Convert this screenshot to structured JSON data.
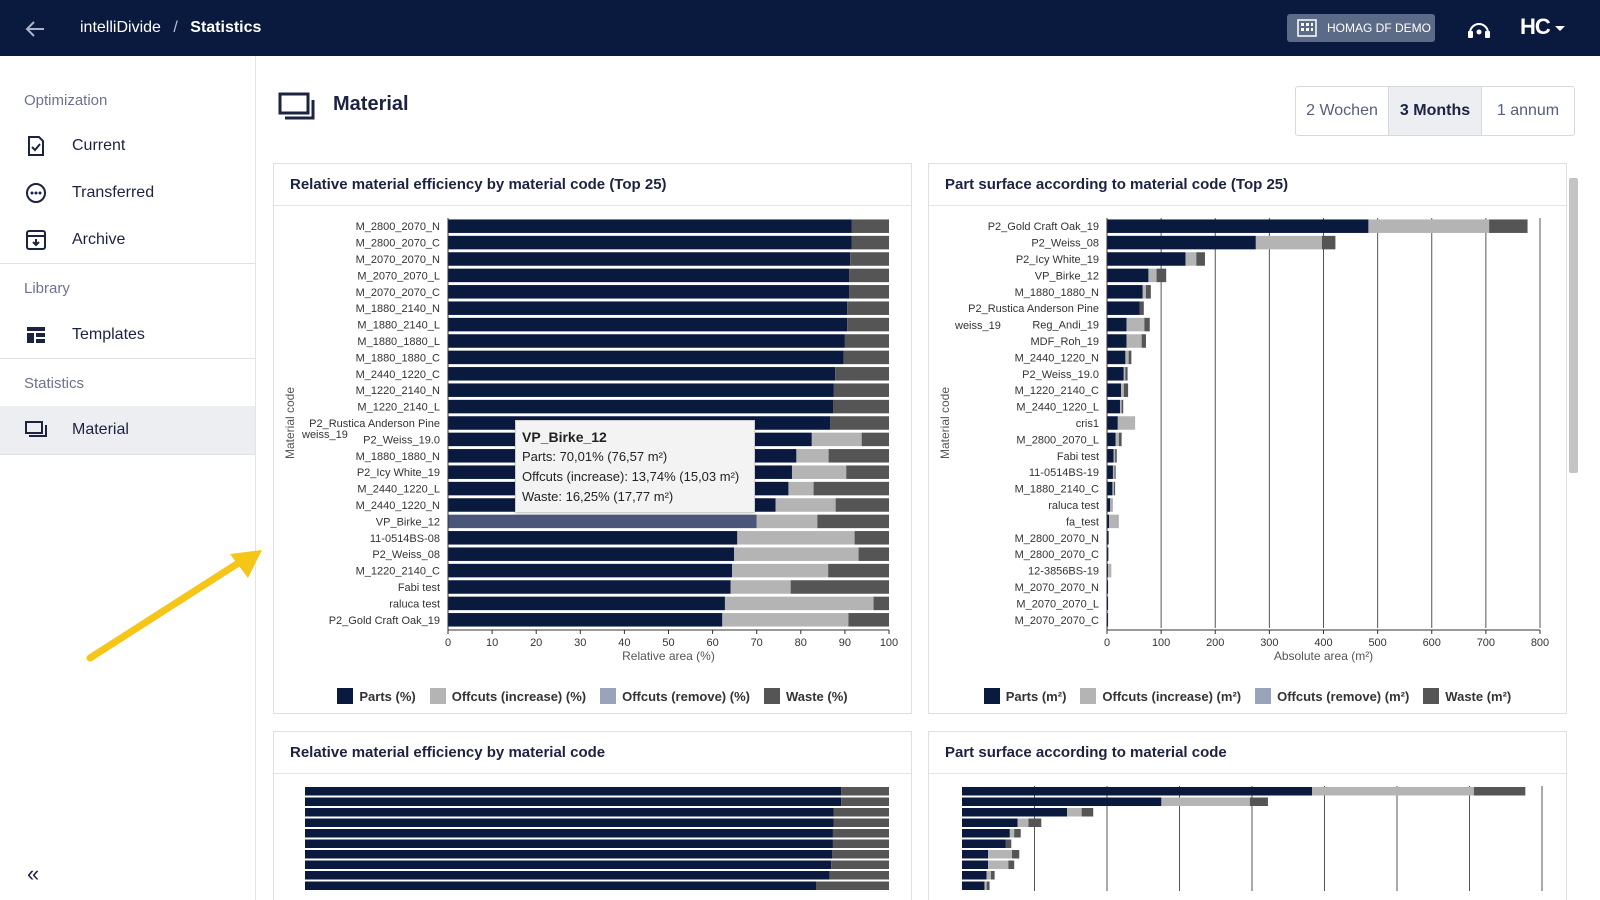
{
  "header": {
    "app": "intelliDivide",
    "separator": "/",
    "page": "Statistics",
    "tenant": "HOMAG DF DEMO",
    "logo": "HC"
  },
  "sidebar": {
    "sections": [
      {
        "title": "Optimization"
      },
      {
        "title": "Library"
      },
      {
        "title": "Statistics"
      }
    ],
    "items": [
      {
        "label": "Current",
        "icon": "document-check-icon"
      },
      {
        "label": "Transferred",
        "icon": "dots-circle-icon"
      },
      {
        "label": "Archive",
        "icon": "archive-icon"
      },
      {
        "label": "Templates",
        "icon": "templates-icon"
      },
      {
        "label": "Material",
        "icon": "material-icon",
        "active": true
      }
    ],
    "collapse": "«"
  },
  "main": {
    "title": "Material",
    "ranges": [
      "2 Wochen",
      "3 Months",
      "1 annum"
    ],
    "selected_range": "3 Months"
  },
  "colors": {
    "parts": "#0a1a3f",
    "offcuts_increase": "#b4b4b4",
    "offcuts_remove": "#9aa4b8",
    "waste": "#555555",
    "highlight": "#4a5679"
  },
  "tooltip": {
    "title": "VP_Birke_12",
    "parts": "Parts: 70,01% (76,57 m²)",
    "offcuts": "Offcuts (increase): 13,74% (15,03 m²)",
    "waste": "Waste: 16,25% (17,77 m²)"
  },
  "chart_data": [
    {
      "type": "bar",
      "orientation": "horizontal",
      "stacked": true,
      "title": "Relative material efficiency by material code (Top 25)",
      "xlabel": "Relative area (%)",
      "ylabel": "Material code",
      "xlim": [
        0,
        100
      ],
      "xticks": [
        0,
        10,
        20,
        30,
        40,
        50,
        60,
        70,
        80,
        90,
        100
      ],
      "categories": [
        "M_2800_2070_N",
        "M_2800_2070_C",
        "M_2070_2070_N",
        "M_2070_2070_L",
        "M_2070_2070_C",
        "M_1880_2140_N",
        "M_1880_2140_L",
        "M_1880_1880_L",
        "M_1880_1880_C",
        "M_2440_1220_C",
        "M_1220_2140_N",
        "M_1220_2140_L",
        "P2_Rustica Anderson Pine",
        "P2_Weiss_19.0",
        "M_1880_1880_N",
        "P2_Icy White_19",
        "M_2440_1220_L",
        "M_2440_1220_N",
        "VP_Birke_12",
        "11-0514BS-08",
        "P2_Weiss_08",
        "M_1220_2140_C",
        "Fabi test",
        "raluca test",
        "P2_Gold Craft Oak_19"
      ],
      "side_label": "weiss_19",
      "highlight": "VP_Birke_12",
      "series": [
        {
          "name": "Parts (%)",
          "values": [
            91.5,
            91.5,
            91.2,
            91,
            91,
            90.5,
            90.5,
            90,
            89.7,
            87.8,
            87.5,
            87.3,
            86.7,
            82.5,
            79,
            78,
            77.2,
            74.3,
            70.01,
            65.6,
            64.9,
            64.4,
            64.1,
            62.8,
            62.2
          ]
        },
        {
          "name": "Offcuts (increase) (%)",
          "values": [
            0,
            0,
            0,
            0,
            0,
            0,
            0,
            0,
            0,
            0,
            0,
            0,
            0,
            11.3,
            7.3,
            12.3,
            5.7,
            13.6,
            13.74,
            26.6,
            28.2,
            21.8,
            13.6,
            33.7,
            28.6
          ]
        },
        {
          "name": "Offcuts (remove) (%)",
          "values": [
            0,
            0,
            0,
            0,
            0,
            0,
            0,
            0,
            0,
            0,
            0,
            0,
            0,
            0,
            0,
            0,
            0,
            0,
            0,
            0,
            0,
            0,
            0,
            0,
            0
          ]
        },
        {
          "name": "Waste (%)",
          "values": [
            8.5,
            8.5,
            8.8,
            9,
            9,
            9.5,
            9.5,
            10,
            10.3,
            12.2,
            12.5,
            12.7,
            13.3,
            6.2,
            13.7,
            9.7,
            17.1,
            12.1,
            16.25,
            7.8,
            6.9,
            13.8,
            22.3,
            3.5,
            9.2
          ]
        }
      ],
      "legend_position": "bottom"
    },
    {
      "type": "bar",
      "orientation": "horizontal",
      "stacked": true,
      "title": "Part surface according to material code (Top 25)",
      "xlabel": "Absolute area (m²)",
      "ylabel": "Material code",
      "xlim": [
        0,
        800
      ],
      "xticks": [
        0,
        100,
        200,
        300,
        400,
        500,
        600,
        700,
        800
      ],
      "categories": [
        "P2_Gold Craft Oak_19",
        "P2_Weiss_08",
        "P2_Icy White_19",
        "VP_Birke_12",
        "M_1880_1880_N",
        "P2_Rustica Anderson Pine",
        "Reg_Andi_19",
        "MDF_Roh_19",
        "M_2440_1220_N",
        "P2_Weiss_19.0",
        "M_1220_2140_C",
        "M_2440_1220_L",
        "cris1",
        "M_2800_2070_L",
        "Fabi test",
        "11-0514BS-19",
        "M_1880_2140_C",
        "raluca test",
        "fa_test",
        "M_2800_2070_N",
        "M_2800_2070_C",
        "12-3856BS-19",
        "M_2070_2070_N",
        "M_2070_2070_L",
        "M_2070_2070_C"
      ],
      "side_label": "weiss_19",
      "grid": true,
      "series": [
        {
          "name": "Parts (m²)",
          "values": [
            483,
            275,
            145,
            76.57,
            66,
            60,
            36,
            36,
            34,
            31,
            26,
            24,
            20,
            16,
            12,
            11,
            10,
            6,
            4,
            3,
            2.5,
            2,
            2,
            2,
            2
          ]
        },
        {
          "name": "Offcuts (increase) (m²)",
          "values": [
            223,
            122,
            20,
            15.03,
            6,
            0,
            33,
            28,
            6,
            3,
            5,
            3,
            32,
            6,
            3,
            3,
            3,
            3,
            16,
            0,
            0,
            6,
            0,
            0,
            0
          ]
        },
        {
          "name": "Offcuts (remove) (m²)",
          "values": [
            0,
            0,
            0,
            0,
            0,
            0,
            0,
            0,
            0,
            0,
            0,
            0,
            0,
            0,
            0,
            0,
            0,
            0,
            0,
            0,
            0,
            0,
            0,
            0,
            0
          ]
        },
        {
          "name": "Waste (m²)",
          "values": [
            71,
            25,
            16,
            17.77,
            9,
            8,
            10,
            8,
            5,
            4,
            8,
            3,
            0,
            5,
            3,
            2,
            2,
            1,
            1,
            0,
            0,
            0,
            0,
            0,
            0
          ]
        }
      ],
      "legend_position": "bottom"
    },
    {
      "type": "bar",
      "orientation": "horizontal",
      "stacked": true,
      "title": "Relative material efficiency by material code",
      "xlim": [
        0,
        100
      ],
      "series": [
        {
          "name": "Parts (%)",
          "values": [
            91.8,
            91.8,
            90.5,
            90.5,
            90.4,
            90.4,
            90.3,
            90.1,
            89.8,
            87.5
          ]
        },
        {
          "name": "Waste (%)",
          "values": [
            8.2,
            8.2,
            9.5,
            9.5,
            9.6,
            9.6,
            9.7,
            9.9,
            10.2,
            12.5
          ]
        }
      ]
    },
    {
      "type": "bar",
      "orientation": "horizontal",
      "stacked": true,
      "title": "Part surface according to material code",
      "xlim": [
        0,
        800
      ],
      "grid": true,
      "series": [
        {
          "name": "Parts (m²)",
          "values": [
            483,
            275,
            145,
            76.57,
            66,
            60,
            36,
            36,
            34,
            31
          ]
        },
        {
          "name": "Offcuts (increase) (m²)",
          "values": [
            223,
            122,
            20,
            15.03,
            6,
            0,
            33,
            28,
            6,
            3
          ]
        },
        {
          "name": "Waste (m²)",
          "values": [
            71,
            25,
            16,
            17.77,
            9,
            8,
            10,
            8,
            5,
            4
          ]
        }
      ]
    }
  ]
}
